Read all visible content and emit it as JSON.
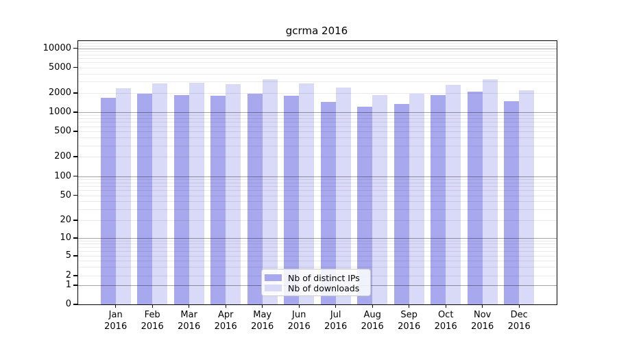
{
  "title": "gcrma 2016",
  "chart_data": {
    "type": "bar",
    "title": "gcrma 2016",
    "categories": [
      "Jan",
      "Feb",
      "Mar",
      "Apr",
      "May",
      "Jun",
      "Jul",
      "Aug",
      "Sep",
      "Oct",
      "Nov",
      "Dec"
    ],
    "category_year": "2016",
    "series": [
      {
        "name": "Nb of distinct IPs",
        "color": "#a8a8ef",
        "values": [
          1670,
          1940,
          1860,
          1825,
          1930,
          1825,
          1450,
          1230,
          1340,
          1860,
          2100,
          1475
        ]
      },
      {
        "name": "Nb of downloads",
        "color": "#d9d9f8",
        "values": [
          2380,
          2850,
          2920,
          2760,
          3250,
          2820,
          2460,
          1860,
          1970,
          2690,
          3250,
          2225
        ]
      }
    ],
    "xlabel": "",
    "ylabel": "",
    "yscale": "symlog",
    "ylim": [
      0,
      13400
    ],
    "yticks": [
      0,
      1,
      2,
      5,
      10,
      20,
      50,
      100,
      200,
      500,
      1000,
      2000,
      5000,
      10000
    ],
    "grid": true,
    "legend_position": "lower center"
  }
}
